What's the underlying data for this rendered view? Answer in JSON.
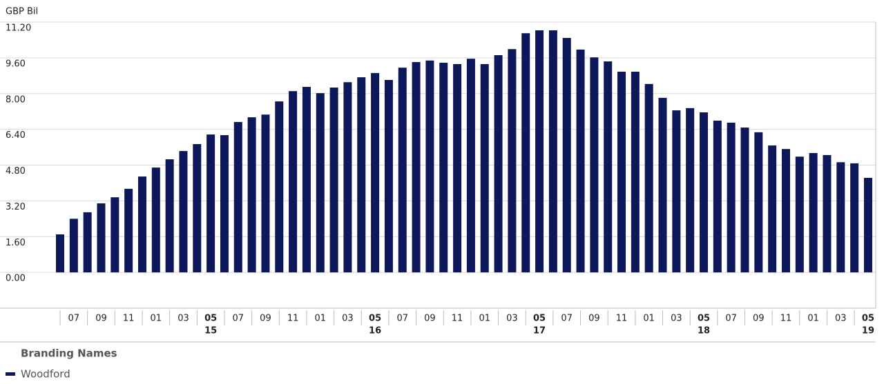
{
  "chart_data": {
    "type": "bar",
    "y_label": "GBP Bil",
    "categories": [
      null,
      "07",
      null,
      "09",
      null,
      "11",
      null,
      "01",
      null,
      "03",
      null,
      "05",
      null,
      "07",
      null,
      "09",
      null,
      "11",
      null,
      "01",
      null,
      "03",
      null,
      "05",
      null,
      "07",
      null,
      "09",
      null,
      "11",
      null,
      "01",
      null,
      "03",
      null,
      "05",
      null,
      "07",
      null,
      "09",
      null,
      "11",
      null,
      "01",
      null,
      "03",
      null,
      "05",
      null,
      "07",
      null,
      "09",
      null,
      "11",
      null,
      "01",
      null,
      "03",
      null,
      "05"
    ],
    "year_labels": [
      null,
      null,
      null,
      null,
      null,
      null,
      null,
      null,
      null,
      null,
      null,
      "15",
      null,
      null,
      null,
      null,
      null,
      null,
      null,
      null,
      null,
      null,
      null,
      "16",
      null,
      null,
      null,
      null,
      null,
      null,
      null,
      null,
      null,
      null,
      null,
      "17",
      null,
      null,
      null,
      null,
      null,
      null,
      null,
      null,
      null,
      null,
      null,
      "18",
      null,
      null,
      null,
      null,
      null,
      null,
      null,
      null,
      null,
      null,
      null,
      "19"
    ],
    "series": [
      {
        "name": "Woodford",
        "color": "#0c1859",
        "values": [
          1.7,
          2.4,
          2.69,
          3.09,
          3.36,
          3.74,
          4.29,
          4.69,
          5.06,
          5.43,
          5.74,
          6.17,
          6.14,
          6.73,
          6.94,
          7.06,
          7.65,
          8.11,
          8.3,
          8.02,
          8.27,
          8.51,
          8.73,
          8.92,
          8.61,
          9.16,
          9.41,
          9.48,
          9.38,
          9.32,
          9.56,
          9.32,
          9.72,
          9.99,
          10.7,
          10.83,
          10.83,
          10.49,
          9.97,
          9.62,
          9.44,
          8.98,
          8.98,
          8.43,
          7.81,
          7.25,
          7.35,
          7.16,
          6.79,
          6.7,
          6.48,
          6.27,
          5.68,
          5.52,
          5.18,
          5.34,
          5.25,
          4.93,
          4.88,
          4.23
        ]
      }
    ],
    "ylim": [
      -1.6,
      11.2
    ],
    "yticks": [
      {
        "value": 0,
        "label": "0.00"
      },
      {
        "value": 1.6,
        "label": "1.60"
      },
      {
        "value": 3.2,
        "label": "3.20"
      },
      {
        "value": 4.8,
        "label": "4.80"
      },
      {
        "value": 6.4,
        "label": "6.40"
      },
      {
        "value": 8,
        "label": "8.00"
      },
      {
        "value": 9.6,
        "label": "9.60"
      },
      {
        "value": 11.2,
        "label": "11.20"
      }
    ],
    "grid": true,
    "legend_title": "Branding Names"
  }
}
